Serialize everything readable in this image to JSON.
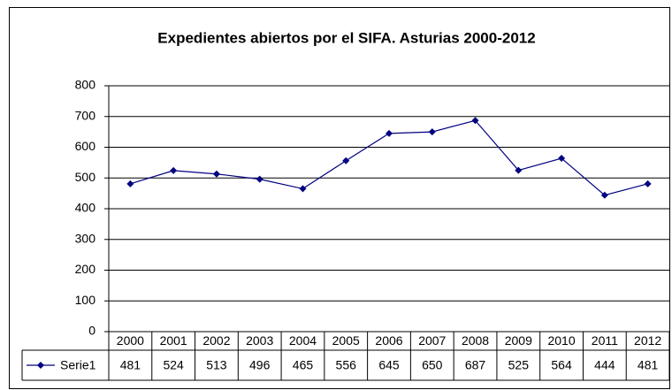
{
  "chart_data": {
    "type": "line",
    "title": "Expedientes abiertos por el SIFA. Asturias 2000-2012",
    "categories": [
      "2000",
      "2001",
      "2002",
      "2003",
      "2004",
      "2005",
      "2006",
      "2007",
      "2008",
      "2009",
      "2010",
      "2011",
      "2012"
    ],
    "series": [
      {
        "name": "Serie1",
        "color": "#000080",
        "values": [
          481,
          524,
          513,
          496,
          465,
          556,
          645,
          650,
          687,
          525,
          564,
          444,
          481
        ]
      }
    ],
    "ylim": [
      0,
      800
    ],
    "yticks": [
      0,
      100,
      200,
      300,
      400,
      500,
      600,
      700,
      800
    ],
    "grid": true
  }
}
